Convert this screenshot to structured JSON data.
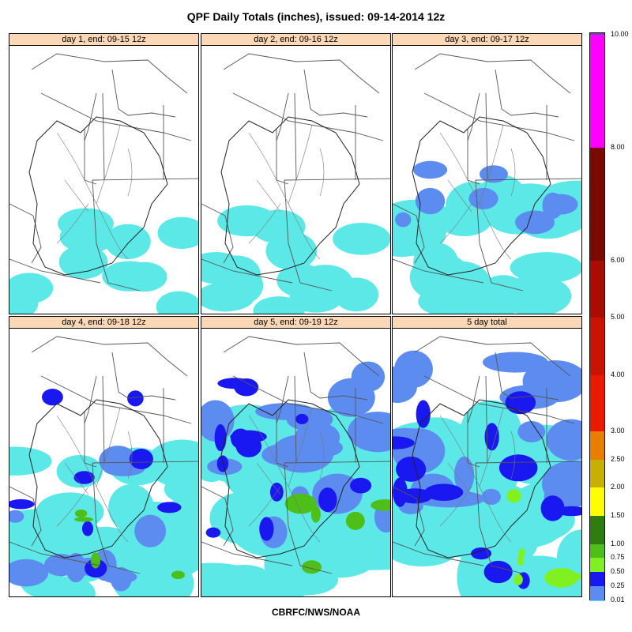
{
  "title": "QPF Daily Totals (inches),  issued: 09-14-2014 12z",
  "footer": "CBRFC/NWS/NOAA",
  "panels": [
    {
      "label": "day 1, end: 09-15 12z",
      "intensity": 0.15
    },
    {
      "label": "day 2, end: 09-16 12z",
      "intensity": 0.25
    },
    {
      "label": "day 3, end: 09-17 12z",
      "intensity": 0.45
    },
    {
      "label": "day 4, end: 09-18 12z",
      "intensity": 0.6
    },
    {
      "label": "day 5, end: 09-19 12z",
      "intensity": 0.9
    },
    {
      "label": "5 day total",
      "intensity": 1.0
    }
  ],
  "legend": {
    "unit": "inches",
    "labels": [
      "10.00",
      "8.00",
      "6.00",
      "5.00",
      "4.00",
      "3.00",
      "2.50",
      "2.00",
      "1.50",
      "1.00",
      "0.75",
      "0.50",
      "0.25",
      "0.01"
    ],
    "colors": [
      "#7b3fbf",
      "#ff00ff",
      "#7a0a00",
      "#a80d00",
      "#c81400",
      "#e81a00",
      "#e87e00",
      "#c8b000",
      "#ffff00",
      "#2e7d0e",
      "#4ebe18",
      "#80f020",
      "#1a18f0",
      "#5d8cf0",
      "#5de8e8"
    ]
  }
}
